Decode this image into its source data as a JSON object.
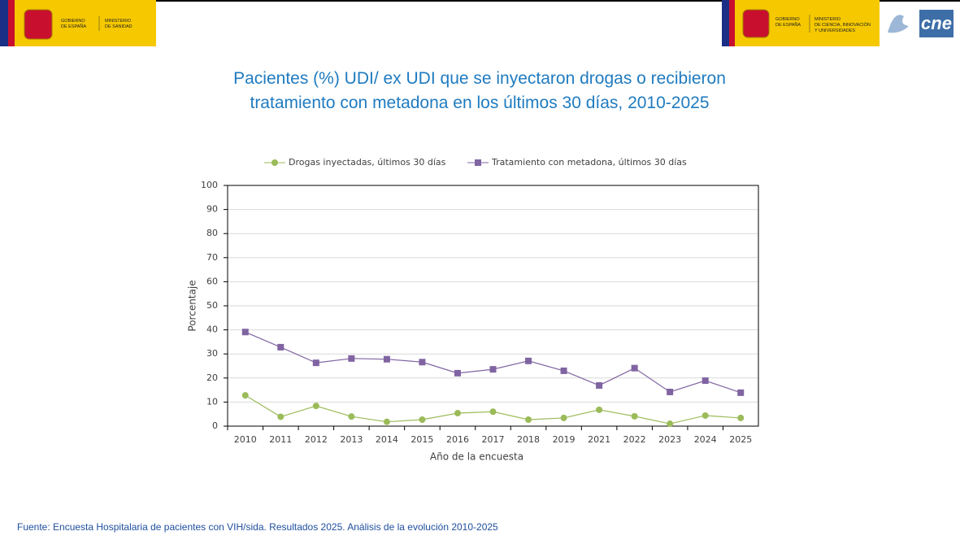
{
  "header": {
    "left_logo": {
      "gobierno": [
        "GOBIERNO",
        "DE ESPAÑA"
      ],
      "ministerio": [
        "MINISTERIO",
        "DE SANIDAD"
      ]
    },
    "right_logo": {
      "gobierno": [
        "GOBIERNO",
        "DE ESPAÑA"
      ],
      "ministerio": [
        "MINISTERIO",
        "DE CIENCIA, INNOVACIÓN",
        "Y UNIVERSIDADES"
      ],
      "brand": "cne"
    }
  },
  "chart_data": {
    "type": "line",
    "title": "Pacientes (%) UDI/ ex UDI que se inyectaron drogas o recibieron tratamiento con metadona en los últimos 30 días, 2010-2025",
    "x_label": "Año de la encuesta",
    "y_label": "Porcentaje",
    "categories": [
      "2010",
      "2011",
      "2012",
      "2013",
      "2014",
      "2015",
      "2016",
      "2017",
      "2018",
      "2019",
      "2021",
      "2022",
      "2023",
      "2024",
      "2025"
    ],
    "series": [
      {
        "name": "Drogas inyectadas, últimos 30 días",
        "color": "#9bbb59",
        "marker": "circle",
        "values": [
          12.8,
          3.9,
          8.4,
          4.0,
          1.8,
          2.7,
          5.4,
          6.0,
          2.7,
          3.4,
          6.8,
          4.1,
          1.0,
          4.4,
          3.4
        ]
      },
      {
        "name": "Tratamiento con metadona, últimos 30 días",
        "color": "#8064a2",
        "marker": "square",
        "values": [
          39.1,
          32.8,
          26.3,
          28.1,
          27.8,
          26.6,
          22.0,
          23.6,
          27.1,
          23.0,
          16.9,
          24.1,
          14.2,
          18.9,
          13.9
        ]
      }
    ],
    "ylim": [
      0,
      100
    ],
    "yticks": [
      0,
      10,
      20,
      30,
      40,
      50,
      60,
      70,
      80,
      90,
      100
    ],
    "grid": true,
    "legend": "top"
  },
  "footer": "Fuente: Encuesta Hospitalaria de pacientes con VIH/sida. Resultados 2025. Análisis de la evolución 2010-2025"
}
